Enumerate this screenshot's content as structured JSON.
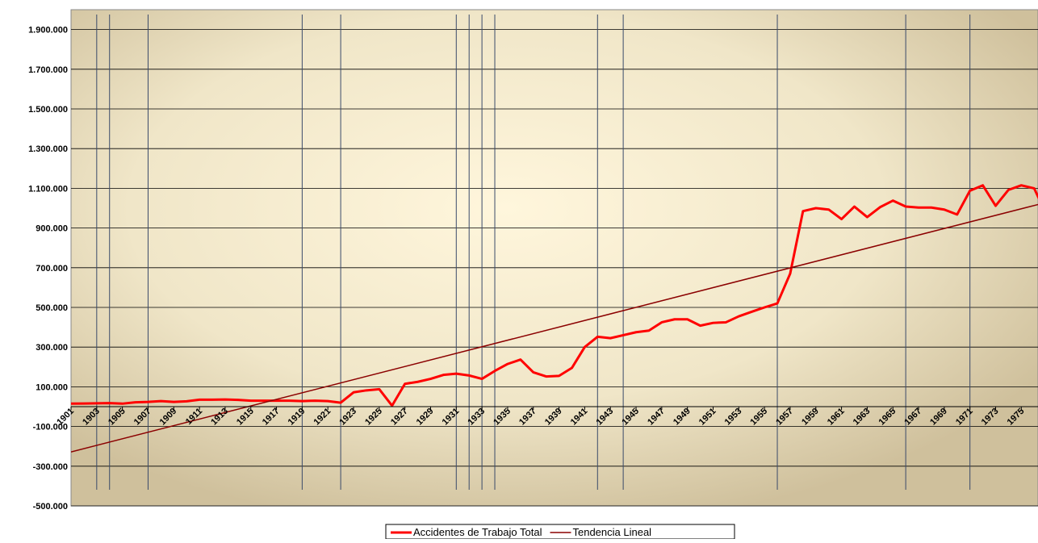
{
  "chart_data": {
    "type": "line",
    "x": [
      1901,
      1902,
      1903,
      1904,
      1905,
      1906,
      1907,
      1908,
      1909,
      1910,
      1911,
      1912,
      1913,
      1914,
      1915,
      1916,
      1917,
      1918,
      1919,
      1920,
      1921,
      1922,
      1923,
      1924,
      1925,
      1926,
      1927,
      1928,
      1929,
      1930,
      1931,
      1932,
      1933,
      1934,
      1935,
      1936,
      1937,
      1938,
      1939,
      1940,
      1941,
      1942,
      1943,
      1944,
      1945,
      1946,
      1947,
      1948,
      1949,
      1950,
      1951,
      1952,
      1953,
      1954,
      1955,
      1956,
      1957,
      1958,
      1959,
      1960,
      1961,
      1962,
      1963,
      1964,
      1965,
      1966,
      1967,
      1968,
      1969,
      1970,
      1971,
      1972,
      1973,
      1974,
      1975,
      1976,
      1977
    ],
    "series": [
      {
        "name": "Accidentes de Trabajo Total",
        "color": "#ff0000",
        "values": [
          15000,
          16000,
          17000,
          18000,
          15000,
          22000,
          24000,
          28000,
          24000,
          27000,
          35000,
          35000,
          36000,
          34000,
          30000,
          30000,
          30000,
          30000,
          28000,
          30000,
          28000,
          20000,
          72000,
          82000,
          88000,
          5000,
          115000,
          125000,
          140000,
          160000,
          166000,
          157000,
          140000,
          180000,
          215000,
          237000,
          173000,
          152000,
          155000,
          195000,
          300000,
          352000,
          345000,
          360000,
          375000,
          383000,
          425000,
          440000,
          440000,
          408000,
          422000,
          425000,
          455000,
          478000,
          500000,
          520000,
          670000,
          985000,
          1000000,
          993000,
          945000,
          1008000,
          955000,
          1005000,
          1038000,
          1008000,
          1003000,
          1003000,
          993000,
          968000,
          1088000,
          1115000,
          1012000,
          1092000,
          1115000,
          1100000,
          960000
        ]
      },
      {
        "name": "Tendencia Lineal",
        "color": "#8b0000",
        "x": [
          1901,
          1977
        ],
        "values": [
          -228000,
          1030000
        ]
      }
    ],
    "vlines": [
      1903,
      1904,
      1907,
      1919,
      1922,
      1931,
      1932,
      1933,
      1934,
      1942,
      1944,
      1956,
      1966,
      1971
    ],
    "xlim": [
      1901,
      1976.3
    ],
    "xticks": [
      1901,
      1903,
      1905,
      1907,
      1909,
      1911,
      1913,
      1915,
      1917,
      1919,
      1921,
      1923,
      1925,
      1927,
      1929,
      1931,
      1933,
      1935,
      1937,
      1939,
      1941,
      1943,
      1945,
      1947,
      1949,
      1951,
      1953,
      1955,
      1957,
      1959,
      1961,
      1963,
      1965,
      1967,
      1969,
      1971,
      1973,
      1975
    ],
    "ylim": [
      -500000,
      2000000
    ],
    "yticks": [
      {
        "value": -500000,
        "label": "-500.000"
      },
      {
        "value": -300000,
        "label": "-300.000"
      },
      {
        "value": -100000,
        "label": "-100.000"
      },
      {
        "value": 100000,
        "label": "100.000"
      },
      {
        "value": 300000,
        "label": "300.000"
      },
      {
        "value": 500000,
        "label": "500.000"
      },
      {
        "value": 700000,
        "label": "700.000"
      },
      {
        "value": 900000,
        "label": "900.000"
      },
      {
        "value": 1100000,
        "label": "1.100.000"
      },
      {
        "value": 1300000,
        "label": "1.300.000"
      },
      {
        "value": 1500000,
        "label": "1.500.000"
      },
      {
        "value": 1700000,
        "label": "1.700.000"
      },
      {
        "value": 1900000,
        "label": "1.900.000"
      }
    ],
    "grid": true
  }
}
